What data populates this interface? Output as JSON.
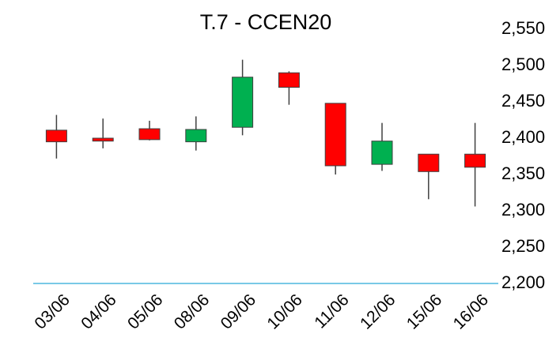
{
  "chart_data": {
    "type": "candlestick",
    "title": "T.7 - CCEN20",
    "categories": [
      "03/06",
      "04/06",
      "05/06",
      "08/06",
      "09/06",
      "10/06",
      "11/06",
      "12/06",
      "15/06",
      "16/06"
    ],
    "open": [
      2411,
      2400,
      2413,
      2395,
      2415,
      2490,
      2448,
      2364,
      2378,
      2378
    ],
    "high": [
      2432,
      2427,
      2424,
      2430,
      2508,
      2492,
      2448,
      2421,
      2378,
      2421
    ],
    "low": [
      2372,
      2386,
      2397,
      2383,
      2404,
      2446,
      2350,
      2355,
      2316,
      2306
    ],
    "close": [
      2395,
      2396,
      2398,
      2412,
      2484,
      2470,
      2362,
      2396,
      2354,
      2360
    ],
    "up_color": "#00b050",
    "down_color": "#ff0000",
    "axis_color": "#29a9d6",
    "ylim": [
      2200,
      2550
    ],
    "yticks": [
      {
        "value": 2200,
        "label": "2,200"
      },
      {
        "value": 2250,
        "label": "2,250"
      },
      {
        "value": 2300,
        "label": "2,300"
      },
      {
        "value": 2350,
        "label": "2,350"
      },
      {
        "value": 2400,
        "label": "2,400"
      },
      {
        "value": 2450,
        "label": "2,450"
      },
      {
        "value": 2500,
        "label": "2,500"
      },
      {
        "value": 2550,
        "label": "2,550"
      }
    ],
    "y_axis_side": "right"
  }
}
